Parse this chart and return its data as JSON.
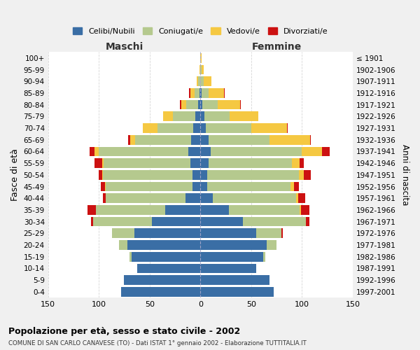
{
  "age_groups": [
    "0-4",
    "5-9",
    "10-14",
    "15-19",
    "20-24",
    "25-29",
    "30-34",
    "35-39",
    "40-44",
    "45-49",
    "50-54",
    "55-59",
    "60-64",
    "65-69",
    "70-74",
    "75-79",
    "80-84",
    "85-89",
    "90-94",
    "95-99",
    "100+"
  ],
  "birth_years": [
    "1997-2001",
    "1992-1996",
    "1987-1991",
    "1982-1986",
    "1977-1981",
    "1972-1976",
    "1967-1971",
    "1962-1966",
    "1957-1961",
    "1952-1956",
    "1947-1951",
    "1942-1946",
    "1937-1941",
    "1932-1936",
    "1927-1931",
    "1922-1926",
    "1917-1921",
    "1912-1916",
    "1907-1911",
    "1902-1906",
    "≤ 1901"
  ],
  "colors": {
    "celibi": "#3a6ea5",
    "coniugati": "#b5c98e",
    "vedovi": "#f5c842",
    "divorziati": "#cc1111"
  },
  "maschi": {
    "celibi": [
      78,
      75,
      62,
      68,
      72,
      65,
      48,
      35,
      15,
      8,
      8,
      10,
      12,
      9,
      7,
      5,
      2,
      1,
      0,
      0,
      0
    ],
    "coniugati": [
      0,
      0,
      0,
      2,
      8,
      22,
      58,
      68,
      78,
      85,
      88,
      85,
      88,
      55,
      35,
      22,
      12,
      5,
      2,
      0,
      0
    ],
    "vedovi": [
      0,
      0,
      0,
      0,
      0,
      0,
      0,
      0,
      0,
      1,
      1,
      2,
      4,
      5,
      15,
      10,
      5,
      4,
      2,
      1,
      0
    ],
    "divorziati": [
      0,
      0,
      0,
      0,
      0,
      0,
      2,
      8,
      3,
      4,
      3,
      7,
      5,
      2,
      0,
      0,
      1,
      1,
      0,
      0,
      0
    ]
  },
  "femmine": {
    "celibi": [
      72,
      68,
      55,
      62,
      65,
      55,
      42,
      28,
      12,
      7,
      7,
      8,
      10,
      8,
      5,
      4,
      2,
      1,
      0,
      0,
      0
    ],
    "coniugati": [
      0,
      0,
      0,
      2,
      10,
      25,
      62,
      70,
      82,
      82,
      90,
      82,
      90,
      60,
      45,
      25,
      15,
      7,
      3,
      1,
      0
    ],
    "vedovi": [
      0,
      0,
      0,
      0,
      0,
      0,
      0,
      1,
      2,
      3,
      5,
      8,
      20,
      40,
      35,
      28,
      22,
      15,
      8,
      2,
      1
    ],
    "divorziati": [
      0,
      0,
      0,
      0,
      0,
      1,
      3,
      8,
      7,
      5,
      7,
      4,
      7,
      1,
      1,
      0,
      1,
      1,
      0,
      0,
      0
    ]
  },
  "xlim": 150,
  "title": "Popolazione per età, sesso e stato civile - 2002",
  "subtitle": "COMUNE DI SAN CARLO CANAVESE (TO) - Dati ISTAT 1° gennaio 2002 - Elaborazione TUTTITALIA.IT",
  "ylabel": "Fasce di età",
  "ylabel_right": "Anni di nascita",
  "label_maschi": "Maschi",
  "label_femmine": "Femmine",
  "legend_labels": [
    "Celibi/Nubili",
    "Coniugati/e",
    "Vedovi/e",
    "Divorziati/e"
  ],
  "bg_color": "#f0f0f0",
  "plot_bg": "#ffffff"
}
